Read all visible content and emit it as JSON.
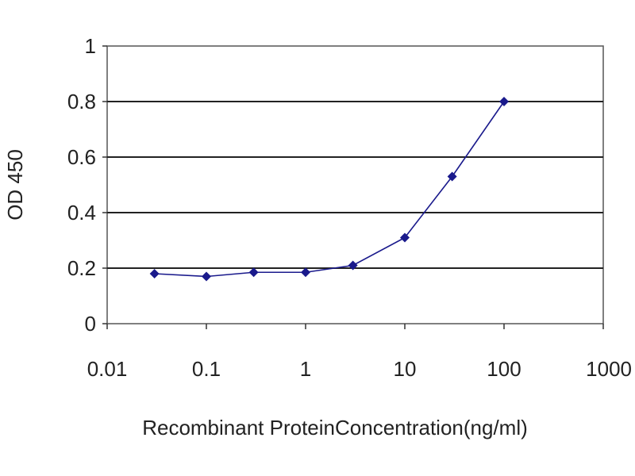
{
  "chart_data": {
    "type": "line",
    "title": "",
    "xlabel": "Recombinant ProteinConcentration(ng/ml)",
    "ylabel": "OD 450",
    "x_scale": "log",
    "xlim": [
      0.01,
      1000
    ],
    "ylim": [
      0,
      1
    ],
    "x_ticks": [
      0.01,
      0.1,
      1,
      10,
      100,
      1000
    ],
    "x_tick_labels": [
      "0.01",
      "0.1",
      "1",
      "10",
      "100",
      "1000"
    ],
    "y_ticks": [
      0,
      0.2,
      0.4,
      0.6,
      0.8,
      1
    ],
    "y_tick_labels": [
      "0",
      "0.2",
      "0.4",
      "0.6",
      "0.8",
      "1"
    ],
    "grid": "horizontal",
    "legend": "none",
    "series": [
      {
        "color": "#1a1a8c",
        "marker": "diamond",
        "x": [
          0.03,
          0.1,
          0.3,
          1,
          3,
          10,
          30,
          100
        ],
        "y": [
          0.18,
          0.17,
          0.185,
          0.185,
          0.21,
          0.31,
          0.53,
          0.8
        ]
      }
    ]
  }
}
